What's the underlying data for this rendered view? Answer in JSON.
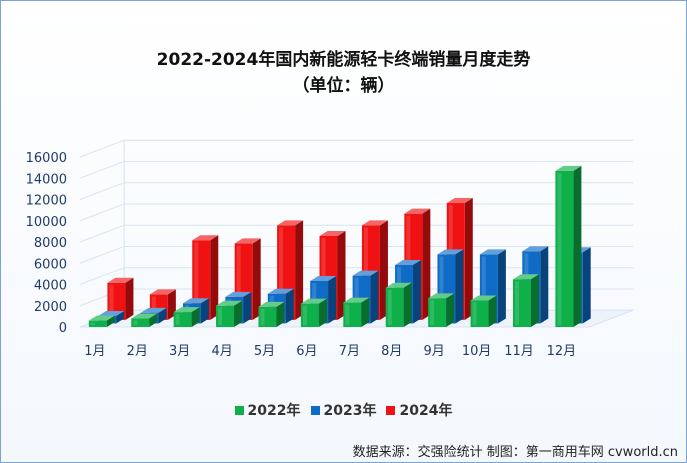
{
  "chart_data": {
    "type": "bar",
    "title": "2022-2024年国内新能源轻卡终端销量月度走势",
    "subtitle": "（单位：辆）",
    "categories": [
      "1月",
      "2月",
      "3月",
      "4月",
      "5月",
      "6月",
      "7月",
      "8月",
      "9月",
      "10月",
      "11月",
      "12月"
    ],
    "series": [
      {
        "name": "2022年",
        "color": "#0fb04a",
        "values": [
          600,
          800,
          1400,
          2000,
          1900,
          2200,
          2300,
          3700,
          2700,
          2500,
          4500,
          14700
        ]
      },
      {
        "name": "2023年",
        "color": "#0f6cc6",
        "values": [
          700,
          1000,
          1900,
          2500,
          2800,
          4000,
          4500,
          5500,
          6500,
          6500,
          6800,
          6700
        ]
      },
      {
        "name": "2024年",
        "color": "#f01212",
        "values": [
          3500,
          2400,
          7500,
          7200,
          8900,
          7900,
          8900,
          10000,
          11000,
          null,
          null,
          null
        ]
      }
    ],
    "y_ticks": [
      "0",
      "2000",
      "4000",
      "6000",
      "8000",
      "10000",
      "12000",
      "14000",
      "16000"
    ],
    "ylim": [
      0,
      16000
    ]
  },
  "source": "数据来源：交强险统计  制图：第一商用车网 cvworld.cn"
}
